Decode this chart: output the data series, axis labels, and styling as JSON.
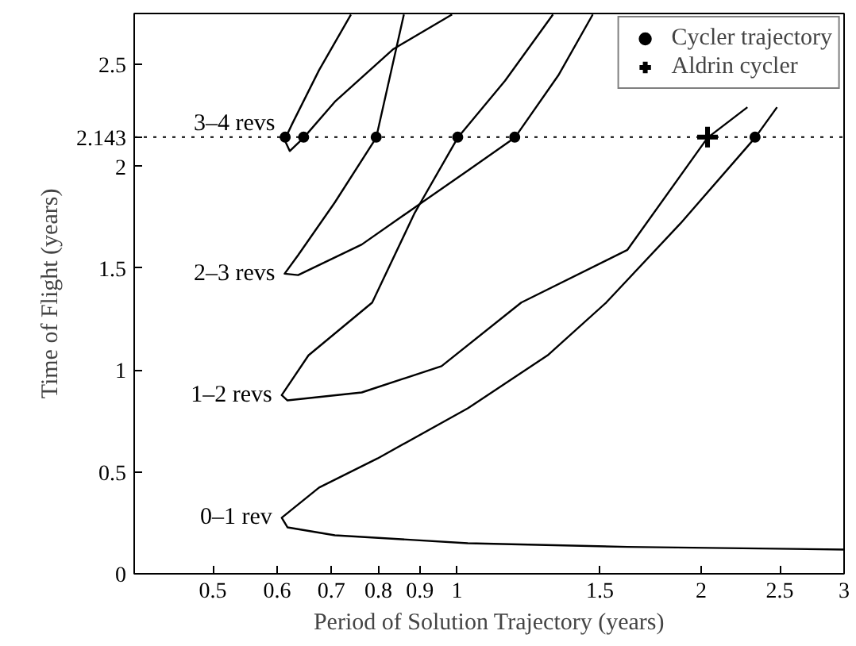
{
  "chart_data": {
    "type": "line",
    "xlabel": "Period of Solution Trajectory (years)",
    "ylabel": "Time of Flight (years)",
    "log": "x",
    "xlim": [
      0.4,
      3
    ],
    "ylim": [
      0,
      2.75
    ],
    "xticks": [
      0.5,
      0.6,
      0.7,
      0.8,
      0.9,
      1,
      1.5,
      2,
      2.5,
      3
    ],
    "yticks": [
      0,
      0.5,
      1,
      1.5,
      2,
      2.143,
      2.5
    ],
    "grid": false,
    "legend": "top right",
    "line_style": "solid",
    "marker": "none",
    "series": [
      {
        "name": "3–4 revs",
        "color": "#000000",
        "x": [
          0.74,
          0.676,
          0.627,
          0.613,
          0.622,
          0.647,
          0.707,
          0.835,
          0.986
        ],
        "values": [
          2.745,
          2.472,
          2.212,
          2.13,
          2.075,
          2.14,
          2.317,
          2.576,
          2.745
        ]
      },
      {
        "name": "2–3 revs",
        "color": "#000000",
        "x": [
          0.86,
          0.795,
          0.707,
          0.637,
          0.613,
          0.637,
          0.763,
          0.887,
          1.031,
          1.178,
          1.333,
          1.47
        ],
        "values": [
          2.745,
          2.14,
          1.823,
          1.564,
          1.473,
          1.466,
          1.616,
          1.798,
          1.979,
          2.14,
          2.446,
          2.745
        ]
      },
      {
        "name": "1–2 revs",
        "color": "#000000",
        "x": [
          1.313,
          1.146,
          1.002,
          0.887,
          0.786,
          0.656,
          0.608,
          0.618,
          0.763,
          0.957,
          1.2,
          1.622,
          2.036,
          2.28
        ],
        "values": [
          2.745,
          2.42,
          2.14,
          1.772,
          1.331,
          1.072,
          0.877,
          0.851,
          0.89,
          1.019,
          1.331,
          1.59,
          2.14,
          2.29
        ]
      },
      {
        "name": "0–1 rev",
        "color": "#000000",
        "x": [
          2.48,
          2.33,
          1.886,
          1.527,
          1.293,
          1.031,
          0.798,
          0.676,
          0.608,
          0.618,
          0.707,
          1.031,
          1.622,
          3.0
        ],
        "values": [
          2.29,
          2.14,
          1.72,
          1.331,
          1.072,
          0.812,
          0.566,
          0.423,
          0.275,
          0.228,
          0.189,
          0.15,
          0.132,
          0.119
        ]
      },
      {
        "type": "scatter",
        "name": "Cycler trajectory",
        "color": "#000000",
        "marker": "circle",
        "x": [
          0.614,
          0.647,
          0.795,
          1.002,
          1.178,
          2.33
        ],
        "values": [
          2.143,
          2.143,
          2.143,
          2.143,
          2.143,
          2.143
        ]
      },
      {
        "type": "scatter",
        "name": "Aldrin cycler",
        "color": "#000000",
        "marker": "cross",
        "x": [
          2.036
        ],
        "values": [
          2.143
        ]
      }
    ],
    "ref_lines": [
      {
        "axis": "y",
        "value": 2.143,
        "line_style": "dotted",
        "color": "#000000"
      }
    ]
  }
}
